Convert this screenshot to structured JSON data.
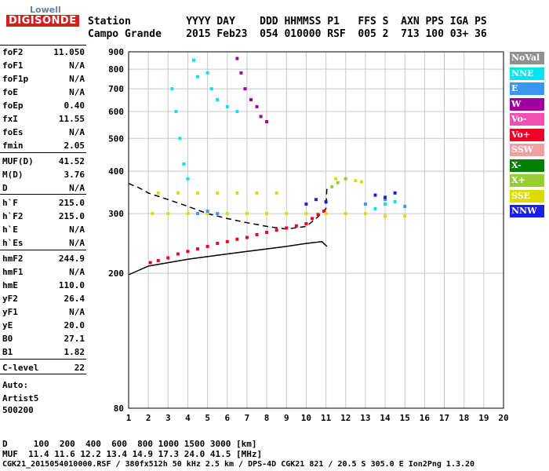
{
  "logo": {
    "top": "Lowell",
    "main": "DIGISONDE"
  },
  "header": {
    "row1": "Station         YYYY DAY    DDD HHMMSS P1   FFS S  AXN PPS IGA PS",
    "row2": "Campo Grande    2015 Feb23  054 010000 RSF  005 2  713 100 03+ 36"
  },
  "params": [
    {
      "name": "foF2",
      "value": "11.050"
    },
    {
      "name": "foF1",
      "value": "N/A"
    },
    {
      "name": "foF1p",
      "value": "N/A"
    },
    {
      "name": "foE",
      "value": "N/A"
    },
    {
      "name": "foEp",
      "value": "0.40"
    },
    {
      "name": "fxI",
      "value": "11.55"
    },
    {
      "name": "foEs",
      "value": "N/A"
    },
    {
      "name": "fmin",
      "value": "2.05"
    },
    {
      "name": "MUF(D)",
      "value": "41.52"
    },
    {
      "name": "M(D)",
      "value": "3.76"
    },
    {
      "name": "D",
      "value": "N/A"
    },
    {
      "name": "h`F",
      "value": "215.0"
    },
    {
      "name": "h`F2",
      "value": "215.0"
    },
    {
      "name": "h`E",
      "value": "N/A"
    },
    {
      "name": "h`Es",
      "value": "N/A"
    },
    {
      "name": "hmF2",
      "value": "244.9"
    },
    {
      "name": "hmF1",
      "value": "N/A"
    },
    {
      "name": "hmE",
      "value": "110.0"
    },
    {
      "name": "yF2",
      "value": "26.4"
    },
    {
      "name": "yF1",
      "value": "N/A"
    },
    {
      "name": "yE",
      "value": "20.0"
    },
    {
      "name": "B0",
      "value": "27.1"
    },
    {
      "name": "B1",
      "value": "1.82"
    },
    {
      "name": "C-level",
      "value": "22"
    }
  ],
  "auto": {
    "line1": "Auto:",
    "line2": "Artist5",
    "line3": "500200"
  },
  "legend": [
    {
      "label": "NoVal",
      "color": "#909090"
    },
    {
      "label": "NNE",
      "color": "#00e6f0"
    },
    {
      "label": "E",
      "color": "#3c96f0"
    },
    {
      "label": "W",
      "color": "#a000a0"
    },
    {
      "label": "Vo-",
      "color": "#f050b4"
    },
    {
      "label": "Vo+",
      "color": "#f00028"
    },
    {
      "label": "SSW",
      "color": "#f0a0a0"
    },
    {
      "label": "X-",
      "color": "#008000"
    },
    {
      "label": "X+",
      "color": "#9acd32"
    },
    {
      "label": "SSE",
      "color": "#dcdc00"
    },
    {
      "label": "NNW",
      "color": "#1e1ee6"
    }
  ],
  "chart_data": {
    "type": "scatter",
    "title": "",
    "xlabel": "",
    "ylabel": "",
    "xlim": [
      1,
      20
    ],
    "ylim": [
      80,
      900
    ],
    "y_scale": "log",
    "x_ticks": [
      1,
      2,
      3,
      4,
      5,
      6,
      7,
      8,
      9,
      10,
      11,
      12,
      13,
      14,
      15,
      16,
      17,
      18,
      19,
      20
    ],
    "y_ticks": [
      80,
      200,
      300,
      400,
      500,
      600,
      700,
      800,
      900
    ],
    "series": [
      {
        "name": "Vo+",
        "color": "#f00028",
        "points": [
          [
            2.1,
            215
          ],
          [
            2.5,
            218
          ],
          [
            3.0,
            222
          ],
          [
            3.5,
            228
          ],
          [
            4.0,
            232
          ],
          [
            4.5,
            236
          ],
          [
            5.0,
            240
          ],
          [
            5.5,
            245
          ],
          [
            6.0,
            248
          ],
          [
            6.5,
            252
          ],
          [
            7.0,
            255
          ],
          [
            7.5,
            260
          ],
          [
            8.0,
            264
          ],
          [
            8.5,
            268
          ],
          [
            9.0,
            272
          ],
          [
            9.5,
            276
          ],
          [
            10.0,
            280
          ],
          [
            10.3,
            290
          ],
          [
            10.6,
            298
          ],
          [
            10.9,
            305
          ]
        ]
      },
      {
        "name": "SSE",
        "color": "#dcdc00",
        "points": [
          [
            2.2,
            300
          ],
          [
            3,
            300
          ],
          [
            4,
            300
          ],
          [
            5,
            300
          ],
          [
            6,
            300
          ],
          [
            7,
            300
          ],
          [
            8,
            300
          ],
          [
            9,
            300
          ],
          [
            10,
            300
          ],
          [
            11,
            300
          ],
          [
            12,
            300
          ],
          [
            13,
            300
          ],
          [
            14,
            295
          ],
          [
            15,
            295
          ],
          [
            2.5,
            345
          ],
          [
            3.5,
            345
          ],
          [
            4.5,
            345
          ],
          [
            5.5,
            345
          ],
          [
            6.5,
            345
          ],
          [
            7.5,
            345
          ],
          [
            8.5,
            345
          ],
          [
            11.5,
            380
          ],
          [
            12.5,
            375
          ],
          [
            12.8,
            372
          ]
        ]
      },
      {
        "name": "NNE",
        "color": "#00e6f0",
        "points": [
          [
            3.2,
            700
          ],
          [
            3.4,
            600
          ],
          [
            3.6,
            500
          ],
          [
            3.8,
            420
          ],
          [
            4.0,
            380
          ],
          [
            4.3,
            850
          ],
          [
            4.5,
            760
          ],
          [
            5.0,
            780
          ],
          [
            5.2,
            700
          ],
          [
            5.5,
            650
          ],
          [
            6.0,
            620
          ],
          [
            6.5,
            600
          ],
          [
            13.5,
            310
          ],
          [
            14.0,
            320
          ],
          [
            14.5,
            325
          ]
        ]
      },
      {
        "name": "E",
        "color": "#3c96f0",
        "points": [
          [
            4.5,
            300
          ],
          [
            5.0,
            305
          ],
          [
            5.5,
            300
          ],
          [
            13.0,
            320
          ],
          [
            14.0,
            330
          ],
          [
            15.0,
            315
          ]
        ]
      },
      {
        "name": "W",
        "color": "#a000a0",
        "points": [
          [
            6.5,
            860
          ],
          [
            6.7,
            780
          ],
          [
            6.9,
            700
          ],
          [
            7.2,
            650
          ],
          [
            7.5,
            620
          ],
          [
            7.7,
            580
          ],
          [
            8.0,
            560
          ]
        ]
      },
      {
        "name": "NNW",
        "color": "#1e1ee6",
        "points": [
          [
            10.0,
            320
          ],
          [
            10.5,
            330
          ],
          [
            11.0,
            325
          ],
          [
            13.5,
            340
          ],
          [
            14.0,
            335
          ],
          [
            14.5,
            345
          ]
        ]
      },
      {
        "name": "X+",
        "color": "#9acd32",
        "points": [
          [
            11.3,
            360
          ],
          [
            11.6,
            370
          ],
          [
            12.0,
            380
          ]
        ]
      }
    ],
    "curves": [
      {
        "name": "profile",
        "style": "solid",
        "color": "#000000",
        "points": [
          [
            1,
            198
          ],
          [
            2,
            210
          ],
          [
            3,
            215
          ],
          [
            4,
            220
          ],
          [
            5,
            224
          ],
          [
            6,
            228
          ],
          [
            7,
            232
          ],
          [
            8,
            236
          ],
          [
            9,
            240
          ],
          [
            10,
            245
          ],
          [
            10.8,
            248
          ],
          [
            11.05,
            240
          ]
        ]
      },
      {
        "name": "mode",
        "style": "dashed",
        "color": "#000000",
        "points": [
          [
            1,
            368
          ],
          [
            1.5,
            358
          ],
          [
            2,
            345
          ],
          [
            3,
            330
          ],
          [
            4,
            315
          ],
          [
            5,
            300
          ],
          [
            6,
            290
          ],
          [
            7,
            282
          ],
          [
            8,
            275
          ],
          [
            9,
            270
          ],
          [
            10,
            275
          ],
          [
            10.5,
            290
          ],
          [
            11.0,
            310
          ],
          [
            11.05,
            360
          ]
        ]
      }
    ]
  },
  "bottom": {
    "line1": "D     100  200  400  600  800 1000 1500 3000 [km]",
    "line2": "MUF  11.4 11.6 12.2 13.4 14.9 17.3 24.0 41.5 [MHz]",
    "line3": "CGK21_2015054010000.RSF / 380fx512h 50 kHz 2.5 km / DPS-4D CGK21 821 / 20.5 S 305.0 E Ion2Png 1.3.20"
  }
}
